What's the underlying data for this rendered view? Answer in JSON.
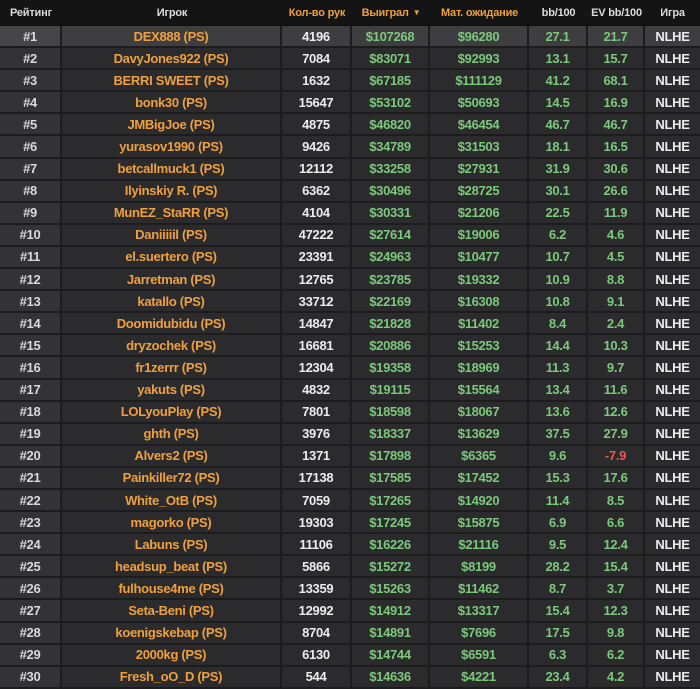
{
  "table": {
    "columns": [
      {
        "key": "rank",
        "label": "Рейтинг",
        "accent": false
      },
      {
        "key": "player",
        "label": "Игрок",
        "accent": false
      },
      {
        "key": "hands",
        "label": "Кол-во рук",
        "accent": true
      },
      {
        "key": "won",
        "label": "Выиграл",
        "accent": true,
        "sorted": true
      },
      {
        "key": "ev_won",
        "label": "Мат. ожидание",
        "accent": true
      },
      {
        "key": "bb100",
        "label": "bb/100",
        "accent": false
      },
      {
        "key": "ev_bb100",
        "label": "EV bb/100",
        "accent": false
      },
      {
        "key": "game",
        "label": "Игра",
        "accent": false
      }
    ],
    "sort_icon": "▼",
    "rows": [
      {
        "rank": "#1",
        "player": "DEX888 (PS)",
        "hands": "4196",
        "won": "$107268",
        "ev_won": "$96280",
        "bb100": "27.1",
        "ev_bb100": "21.7",
        "game": "NLHE",
        "highlighted": true
      },
      {
        "rank": "#2",
        "player": "DavyJones922 (PS)",
        "hands": "7084",
        "won": "$83071",
        "ev_won": "$92993",
        "bb100": "13.1",
        "ev_bb100": "15.7",
        "game": "NLHE",
        "highlighted": false
      },
      {
        "rank": "#3",
        "player": "BERRI SWEET (PS)",
        "hands": "1632",
        "won": "$67185",
        "ev_won": "$111129",
        "bb100": "41.2",
        "ev_bb100": "68.1",
        "game": "NLHE",
        "highlighted": false
      },
      {
        "rank": "#4",
        "player": "bonk30 (PS)",
        "hands": "15647",
        "won": "$53102",
        "ev_won": "$50693",
        "bb100": "14.5",
        "ev_bb100": "16.9",
        "game": "NLHE",
        "highlighted": false
      },
      {
        "rank": "#5",
        "player": "JMBigJoe (PS)",
        "hands": "4875",
        "won": "$46820",
        "ev_won": "$46454",
        "bb100": "46.7",
        "ev_bb100": "46.7",
        "game": "NLHE",
        "highlighted": false
      },
      {
        "rank": "#6",
        "player": "yurasov1990 (PS)",
        "hands": "9426",
        "won": "$34789",
        "ev_won": "$31503",
        "bb100": "18.1",
        "ev_bb100": "16.5",
        "game": "NLHE",
        "highlighted": false
      },
      {
        "rank": "#7",
        "player": "betcallmuck1 (PS)",
        "hands": "12112",
        "won": "$33258",
        "ev_won": "$27931",
        "bb100": "31.9",
        "ev_bb100": "30.6",
        "game": "NLHE",
        "highlighted": false
      },
      {
        "rank": "#8",
        "player": "Ilyinskiy R. (PS)",
        "hands": "6362",
        "won": "$30496",
        "ev_won": "$28725",
        "bb100": "30.1",
        "ev_bb100": "26.6",
        "game": "NLHE",
        "highlighted": false
      },
      {
        "rank": "#9",
        "player": "MunEZ_StaRR (PS)",
        "hands": "4104",
        "won": "$30331",
        "ev_won": "$21206",
        "bb100": "22.5",
        "ev_bb100": "11.9",
        "game": "NLHE",
        "highlighted": false
      },
      {
        "rank": "#10",
        "player": "Daniiiiil (PS)",
        "hands": "47222",
        "won": "$27614",
        "ev_won": "$19006",
        "bb100": "6.2",
        "ev_bb100": "4.6",
        "game": "NLHE",
        "highlighted": false
      },
      {
        "rank": "#11",
        "player": "el.suertero (PS)",
        "hands": "23391",
        "won": "$24963",
        "ev_won": "$10477",
        "bb100": "10.7",
        "ev_bb100": "4.5",
        "game": "NLHE",
        "highlighted": false
      },
      {
        "rank": "#12",
        "player": "Jarretman (PS)",
        "hands": "12765",
        "won": "$23785",
        "ev_won": "$19332",
        "bb100": "10.9",
        "ev_bb100": "8.8",
        "game": "NLHE",
        "highlighted": false
      },
      {
        "rank": "#13",
        "player": "katallo (PS)",
        "hands": "33712",
        "won": "$22169",
        "ev_won": "$16308",
        "bb100": "10.8",
        "ev_bb100": "9.1",
        "game": "NLHE",
        "highlighted": false
      },
      {
        "rank": "#14",
        "player": "Doomidubidu (PS)",
        "hands": "14847",
        "won": "$21828",
        "ev_won": "$11402",
        "bb100": "8.4",
        "ev_bb100": "2.4",
        "game": "NLHE",
        "highlighted": false
      },
      {
        "rank": "#15",
        "player": "dryzochek (PS)",
        "hands": "16681",
        "won": "$20886",
        "ev_won": "$15253",
        "bb100": "14.4",
        "ev_bb100": "10.3",
        "game": "NLHE",
        "highlighted": false
      },
      {
        "rank": "#16",
        "player": "fr1zerrr (PS)",
        "hands": "12304",
        "won": "$19358",
        "ev_won": "$18969",
        "bb100": "11.3",
        "ev_bb100": "9.7",
        "game": "NLHE",
        "highlighted": false
      },
      {
        "rank": "#17",
        "player": "yakuts (PS)",
        "hands": "4832",
        "won": "$19115",
        "ev_won": "$15564",
        "bb100": "13.4",
        "ev_bb100": "11.6",
        "game": "NLHE",
        "highlighted": false
      },
      {
        "rank": "#18",
        "player": "LOLyouPlay (PS)",
        "hands": "7801",
        "won": "$18598",
        "ev_won": "$18067",
        "bb100": "13.6",
        "ev_bb100": "12.6",
        "game": "NLHE",
        "highlighted": false
      },
      {
        "rank": "#19",
        "player": "ghth (PS)",
        "hands": "3976",
        "won": "$18337",
        "ev_won": "$13629",
        "bb100": "37.5",
        "ev_bb100": "27.9",
        "game": "NLHE",
        "highlighted": false
      },
      {
        "rank": "#20",
        "player": "Alvers2 (PS)",
        "hands": "1371",
        "won": "$17898",
        "ev_won": "$6365",
        "bb100": "9.6",
        "ev_bb100": "-7.9",
        "game": "NLHE",
        "highlighted": false
      },
      {
        "rank": "#21",
        "player": "Painkiller72 (PS)",
        "hands": "17138",
        "won": "$17585",
        "ev_won": "$17452",
        "bb100": "15.3",
        "ev_bb100": "17.6",
        "game": "NLHE",
        "highlighted": false
      },
      {
        "rank": "#22",
        "player": "White_OtB (PS)",
        "hands": "7059",
        "won": "$17265",
        "ev_won": "$14920",
        "bb100": "11.4",
        "ev_bb100": "8.5",
        "game": "NLHE",
        "highlighted": false
      },
      {
        "rank": "#23",
        "player": "magorko (PS)",
        "hands": "19303",
        "won": "$17245",
        "ev_won": "$15875",
        "bb100": "6.9",
        "ev_bb100": "6.6",
        "game": "NLHE",
        "highlighted": false
      },
      {
        "rank": "#24",
        "player": "Labuns (PS)",
        "hands": "11106",
        "won": "$16226",
        "ev_won": "$21116",
        "bb100": "9.5",
        "ev_bb100": "12.4",
        "game": "NLHE",
        "highlighted": false
      },
      {
        "rank": "#25",
        "player": "headsup_beat (PS)",
        "hands": "5866",
        "won": "$15272",
        "ev_won": "$8199",
        "bb100": "28.2",
        "ev_bb100": "15.4",
        "game": "NLHE",
        "highlighted": false
      },
      {
        "rank": "#26",
        "player": "fulhouse4me (PS)",
        "hands": "13359",
        "won": "$15263",
        "ev_won": "$11462",
        "bb100": "8.7",
        "ev_bb100": "3.7",
        "game": "NLHE",
        "highlighted": false
      },
      {
        "rank": "#27",
        "player": "Seta-Beni (PS)",
        "hands": "12992",
        "won": "$14912",
        "ev_won": "$13317",
        "bb100": "15.4",
        "ev_bb100": "12.3",
        "game": "NLHE",
        "highlighted": false
      },
      {
        "rank": "#28",
        "player": "koenigskebap (PS)",
        "hands": "8704",
        "won": "$14891",
        "ev_won": "$7696",
        "bb100": "17.5",
        "ev_bb100": "9.8",
        "game": "NLHE",
        "highlighted": false
      },
      {
        "rank": "#29",
        "player": "2000kg (PS)",
        "hands": "6130",
        "won": "$14744",
        "ev_won": "$6591",
        "bb100": "6.3",
        "ev_bb100": "6.2",
        "game": "NLHE",
        "highlighted": false
      },
      {
        "rank": "#30",
        "player": "Fresh_oO_D (PS)",
        "hands": "544",
        "won": "$14636",
        "ev_won": "$4221",
        "bb100": "23.4",
        "ev_bb100": "4.2",
        "game": "NLHE",
        "highlighted": false
      }
    ]
  },
  "colors": {
    "accent_orange": "#efa03e",
    "positive_green": "#7cc87c",
    "negative_red": "#e05a57",
    "row_bg": "#2b2b2d",
    "row_highlight_bg": "#3e3e41",
    "header_bg": "#141414"
  }
}
